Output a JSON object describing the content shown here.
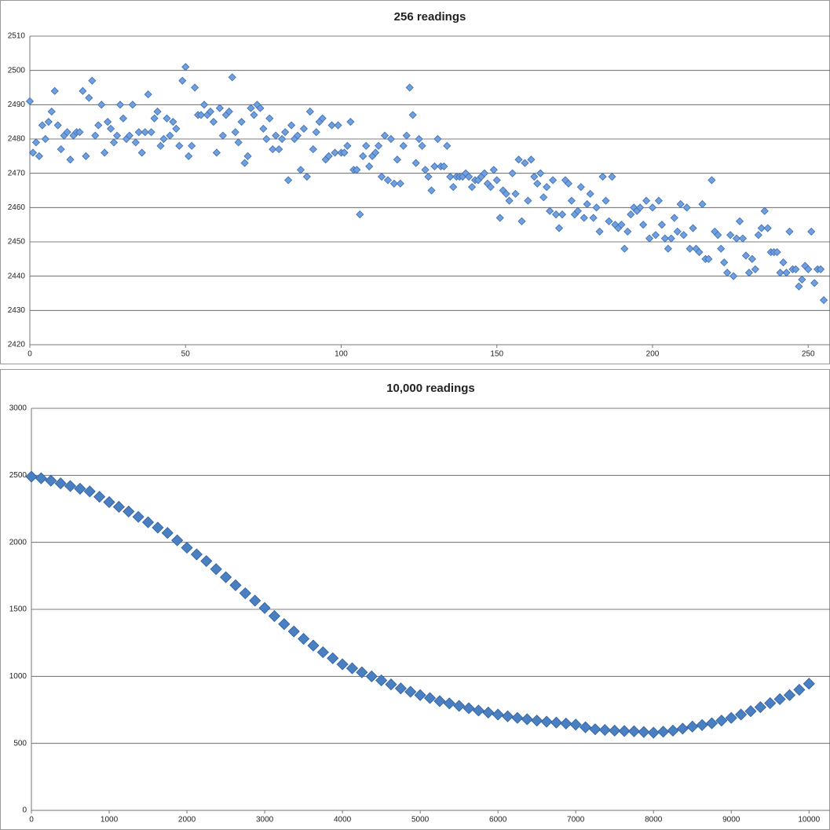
{
  "chart_data": [
    {
      "type": "scatter",
      "title": "256 readings",
      "color": "#6f9fdf",
      "stroke": "#3b6cb0",
      "grid": true,
      "xlim": [
        0,
        257
      ],
      "ylim": [
        2420,
        2510
      ],
      "xticks": [
        0,
        50,
        100,
        150,
        200,
        250
      ],
      "yticks": [
        2420,
        2430,
        2440,
        2450,
        2460,
        2470,
        2480,
        2490,
        2500,
        2510
      ],
      "x": [
        0,
        1,
        2,
        3,
        4,
        5,
        6,
        7,
        8,
        9,
        10,
        11,
        12,
        13,
        14,
        15,
        16,
        17,
        18,
        19,
        20,
        21,
        22,
        23,
        24,
        25,
        26,
        27,
        28,
        29,
        30,
        31,
        32,
        33,
        34,
        35,
        36,
        37,
        38,
        39,
        40,
        41,
        42,
        43,
        44,
        45,
        46,
        47,
        48,
        49,
        50,
        51,
        52,
        53,
        54,
        55,
        56,
        57,
        58,
        59,
        60,
        61,
        62,
        63,
        64,
        65,
        66,
        67,
        68,
        69,
        70,
        71,
        72,
        73,
        74,
        75,
        76,
        77,
        78,
        79,
        80,
        81,
        82,
        83,
        84,
        85,
        86,
        87,
        88,
        89,
        90,
        91,
        92,
        93,
        94,
        95,
        96,
        97,
        98,
        99,
        100,
        101,
        102,
        103,
        104,
        105,
        106,
        107,
        108,
        109,
        110,
        111,
        112,
        113,
        114,
        115,
        116,
        117,
        118,
        119,
        120,
        121,
        122,
        123,
        124,
        125,
        126,
        127,
        128,
        129,
        130,
        131,
        132,
        133,
        134,
        135,
        136,
        137,
        138,
        139,
        140,
        141,
        142,
        143,
        144,
        145,
        146,
        147,
        148,
        149,
        150,
        151,
        152,
        153,
        154,
        155,
        156,
        157,
        158,
        159,
        160,
        161,
        162,
        163,
        164,
        165,
        166,
        167,
        168,
        169,
        170,
        171,
        172,
        173,
        174,
        175,
        176,
        177,
        178,
        179,
        180,
        181,
        182,
        183,
        184,
        185,
        186,
        187,
        188,
        189,
        190,
        191,
        192,
        193,
        194,
        195,
        196,
        197,
        198,
        199,
        200,
        201,
        202,
        203,
        204,
        205,
        206,
        207,
        208,
        209,
        210,
        211,
        212,
        213,
        214,
        215,
        216,
        217,
        218,
        219,
        220,
        221,
        222,
        223,
        224,
        225,
        226,
        227,
        228,
        229,
        230,
        231,
        232,
        233,
        234,
        235,
        236,
        237,
        238,
        239,
        240,
        241,
        242,
        243,
        244,
        245,
        246,
        247,
        248,
        249,
        250,
        251,
        252,
        253,
        254,
        255
      ],
      "values": [
        2491,
        2476,
        2479,
        2475,
        2484,
        2480,
        2485,
        2488,
        2494,
        2484,
        2477,
        2481,
        2482,
        2474,
        2481,
        2482,
        2482,
        2494,
        2475,
        2492,
        2497,
        2481,
        2484,
        2490,
        2476,
        2485,
        2483,
        2479,
        2481,
        2490,
        2486,
        2480,
        2481,
        2490,
        2479,
        2482,
        2476,
        2482,
        2493,
        2482,
        2486,
        2488,
        2478,
        2480,
        2486,
        2481,
        2485,
        2483,
        2478,
        2497,
        2501,
        2475,
        2478,
        2495,
        2487,
        2487,
        2490,
        2487,
        2488,
        2485,
        2476,
        2489,
        2481,
        2487,
        2488,
        2498,
        2482,
        2479,
        2485,
        2473,
        2475,
        2489,
        2487,
        2490,
        2489,
        2483,
        2480,
        2486,
        2477,
        2481,
        2477,
        2480,
        2482,
        2468,
        2484,
        2480,
        2481,
        2471,
        2483,
        2469,
        2488,
        2477,
        2482,
        2485,
        2486,
        2474,
        2475,
        2484,
        2476,
        2484,
        2476,
        2476,
        2478,
        2485,
        2471,
        2471,
        2458,
        2475,
        2478,
        2472,
        2475,
        2476,
        2478,
        2469,
        2481,
        2468,
        2480,
        2467,
        2474,
        2467,
        2478,
        2481,
        2495,
        2487,
        2473,
        2480,
        2478,
        2471,
        2469,
        2465,
        2472,
        2480,
        2472,
        2472,
        2478,
        2469,
        2466,
        2469,
        2469,
        2469,
        2470,
        2469,
        2466,
        2468,
        2468,
        2469,
        2470,
        2467,
        2466,
        2471,
        2468,
        2457,
        2465,
        2464,
        2462,
        2470,
        2464,
        2474,
        2456,
        2473,
        2462,
        2474,
        2469,
        2467,
        2470,
        2463,
        2466,
        2459,
        2468,
        2458,
        2454,
        2458,
        2468,
        2467,
        2462,
        2458,
        2459,
        2466,
        2457,
        2461,
        2464,
        2457,
        2460,
        2453,
        2469,
        2462,
        2456,
        2469,
        2455,
        2454,
        2455,
        2448,
        2453,
        2458,
        2460,
        2459,
        2460,
        2455,
        2462,
        2451,
        2460,
        2452,
        2462,
        2455,
        2451,
        2448,
        2451,
        2457,
        2453,
        2461,
        2452,
        2460,
        2448,
        2454,
        2448,
        2447,
        2461,
        2445,
        2445,
        2468,
        2453,
        2452,
        2448,
        2444,
        2441,
        2452,
        2440,
        2451,
        2456,
        2451,
        2446,
        2441,
        2445,
        2442,
        2452,
        2454,
        2459,
        2454,
        2447,
        2447,
        2447,
        2441,
        2444,
        2441,
        2453,
        2442,
        2442,
        2437,
        2439,
        2443,
        2442,
        2453,
        2438,
        2442,
        2442,
        2433
      ]
    },
    {
      "type": "scatter",
      "title": "10,000 readings",
      "color": "#4a7fc1",
      "stroke": "#2e5f9e",
      "grid": true,
      "xlim": [
        0,
        10270
      ],
      "ylim": [
        0,
        3000
      ],
      "xticks": [
        0,
        1000,
        2000,
        3000,
        4000,
        5000,
        6000,
        7000,
        8000,
        9000,
        10000
      ],
      "yticks": [
        0,
        500,
        1000,
        1500,
        2000,
        2500,
        3000
      ],
      "x": [
        0,
        125,
        250,
        375,
        500,
        625,
        750,
        875,
        1000,
        1125,
        1250,
        1375,
        1500,
        1625,
        1750,
        1875,
        2000,
        2125,
        2250,
        2375,
        2500,
        2625,
        2750,
        2875,
        3000,
        3125,
        3250,
        3375,
        3500,
        3625,
        3750,
        3875,
        4000,
        4125,
        4250,
        4375,
        4500,
        4625,
        4750,
        4875,
        5000,
        5125,
        5250,
        5375,
        5500,
        5625,
        5750,
        5875,
        6000,
        6125,
        6250,
        6375,
        6500,
        6625,
        6750,
        6875,
        7000,
        7125,
        7250,
        7375,
        7500,
        7625,
        7750,
        7875,
        8000,
        8125,
        8250,
        8375,
        8500,
        8625,
        8750,
        8875,
        9000,
        9125,
        9250,
        9375,
        9500,
        9625,
        9750,
        9875,
        10000
      ],
      "values": [
        2490,
        2478,
        2460,
        2440,
        2420,
        2400,
        2380,
        2340,
        2300,
        2265,
        2230,
        2190,
        2150,
        2110,
        2070,
        2015,
        1960,
        1910,
        1860,
        1800,
        1740,
        1680,
        1620,
        1565,
        1510,
        1450,
        1390,
        1335,
        1280,
        1230,
        1180,
        1135,
        1090,
        1060,
        1030,
        1000,
        970,
        940,
        910,
        885,
        860,
        838,
        815,
        798,
        780,
        762,
        745,
        730,
        715,
        702,
        690,
        680,
        670,
        662,
        655,
        648,
        640,
        620,
        605,
        600,
        595,
        592,
        590,
        585,
        580,
        587,
        595,
        610,
        625,
        637,
        650,
        670,
        690,
        715,
        740,
        770,
        800,
        830,
        860,
        900,
        945
      ]
    }
  ]
}
